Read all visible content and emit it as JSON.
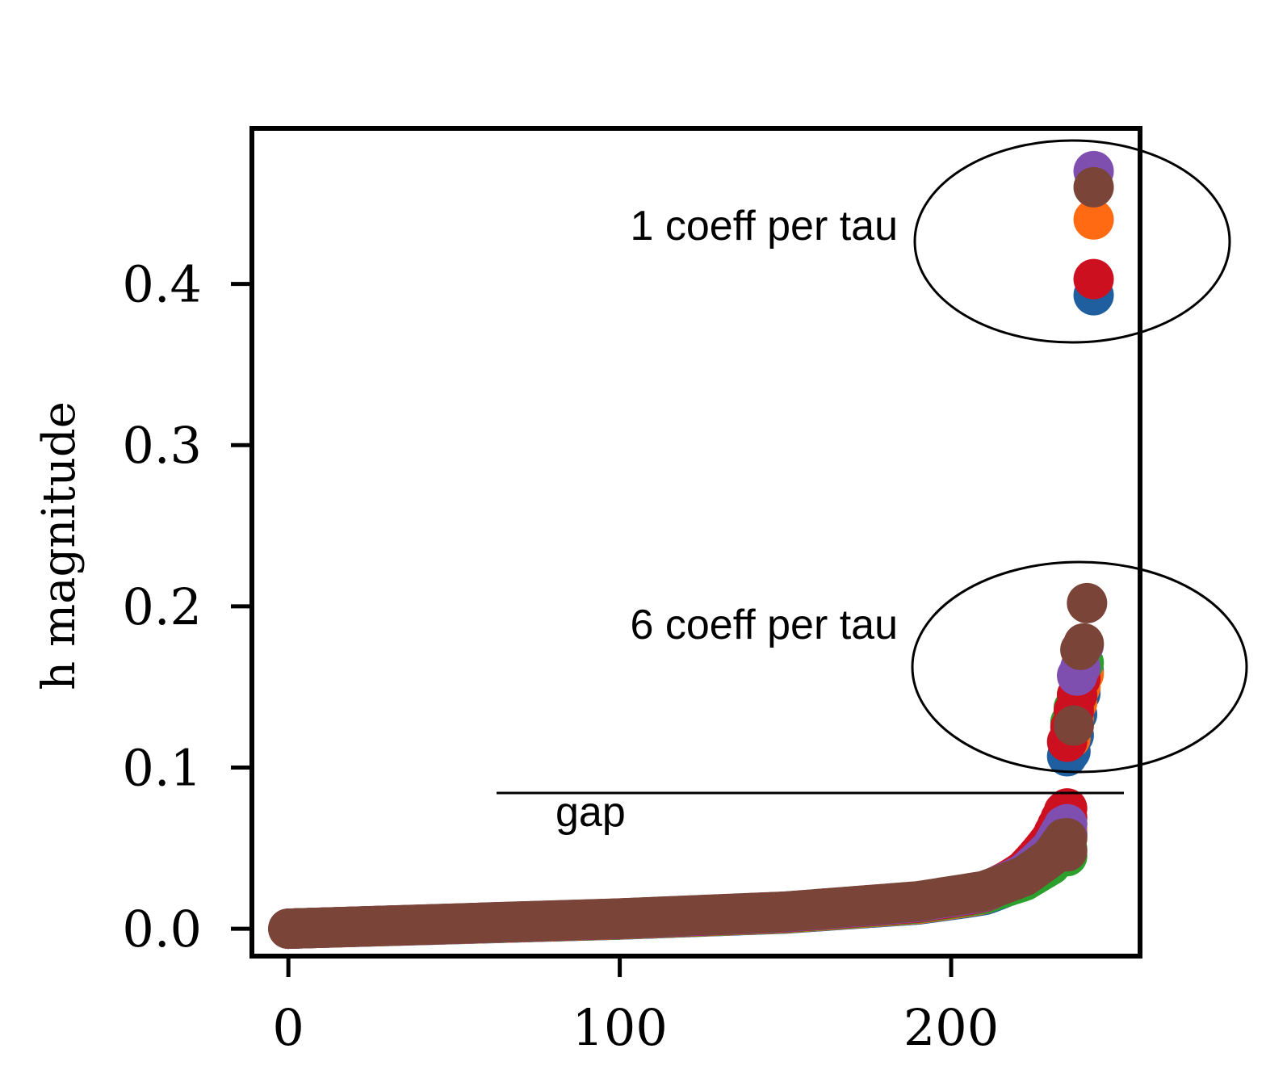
{
  "chart_data": {
    "type": "scatter",
    "title": "",
    "xlabel": "",
    "ylabel": "h magnitude",
    "xlim": [
      -11,
      257
    ],
    "ylim": [
      -0.017,
      0.4965
    ],
    "xticks": [
      0,
      100,
      200
    ],
    "xtick_labels": [
      "0",
      "100",
      "200"
    ],
    "yticks": [
      0.0,
      0.1,
      0.2,
      0.3,
      0.4
    ],
    "ytick_labels": [
      "0.0",
      "0.1",
      "0.2",
      "0.3",
      "0.4"
    ],
    "grid": false,
    "legend": null,
    "series": [
      {
        "color": "#1f5fa0",
        "head": [
          [
            235,
            0.107
          ],
          [
            236,
            0.11
          ],
          [
            237,
            0.12
          ],
          [
            238,
            0.133
          ],
          [
            239,
            0.146
          ],
          [
            240,
            0.16
          ],
          [
            243,
            0.393
          ]
        ],
        "tail_top": 0.058
      },
      {
        "color": "#ff6a13",
        "head": [
          [
            236,
            0.118
          ],
          [
            237,
            0.13
          ],
          [
            238,
            0.14
          ],
          [
            239,
            0.15
          ],
          [
            240,
            0.158
          ],
          [
            243,
            0.44
          ]
        ],
        "tail_top": 0.062
      },
      {
        "color": "#2ca02c",
        "head": [
          [
            236,
            0.128
          ],
          [
            237,
            0.137
          ],
          [
            238,
            0.145
          ],
          [
            239,
            0.155
          ],
          [
            240,
            0.165
          ]
        ],
        "tail_top": 0.045
      },
      {
        "color": "#cc1020",
        "head": [
          [
            235,
            0.116
          ],
          [
            236,
            0.125
          ],
          [
            237,
            0.135
          ],
          [
            238,
            0.145
          ],
          [
            239,
            0.155
          ],
          [
            243,
            0.403
          ]
        ],
        "tail_top": 0.069
      },
      {
        "color": "#7f4fb0",
        "head": [
          [
            238,
            0.157
          ],
          [
            239,
            0.162
          ],
          [
            240,
            0.176
          ],
          [
            243,
            0.47
          ]
        ],
        "tail_top": 0.058
      },
      {
        "color": "#7a4438",
        "head": [
          [
            237,
            0.126
          ],
          [
            239,
            0.173
          ],
          [
            240,
            0.177
          ],
          [
            241,
            0.202
          ],
          [
            243,
            0.46
          ]
        ],
        "tail_top": 0.048
      }
    ],
    "annotations": [
      {
        "text": "1 coeff per tau"
      },
      {
        "text": "6 coeff per tau"
      },
      {
        "text": "gap"
      }
    ]
  }
}
